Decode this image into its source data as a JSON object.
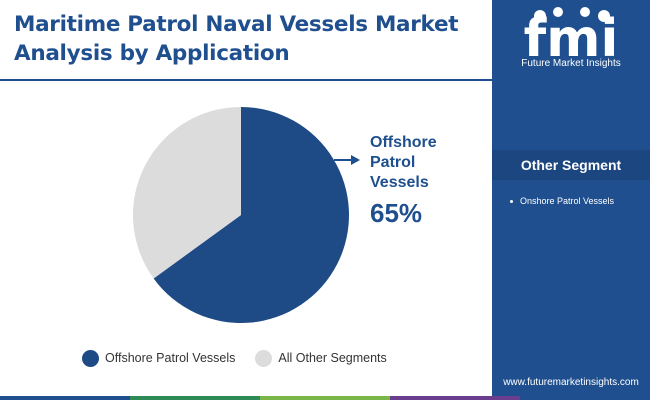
{
  "header": {
    "title": "Maritime Patrol Naval Vessels Market Analysis by Application"
  },
  "brand": {
    "logo_text": "fmi",
    "name": "Future Market Insights",
    "url": "www.futuremarketinsights.com"
  },
  "side_panel": {
    "heading": "Other Segment",
    "items": [
      "Onshore Patrol Vessels"
    ]
  },
  "callout": {
    "label": "Offshore Patrol Vessels",
    "label_lines": [
      "Offshore",
      "Patrol",
      "Vessels"
    ],
    "value": "65%"
  },
  "colors": {
    "navy": "#1f4f8f",
    "slice_primary": "#1e4a85",
    "slice_other": "#dcdcdc",
    "bar": [
      "#1f4f8f",
      "#2e8b57",
      "#7ab648",
      "#6a3d8f",
      "#1f4f8f"
    ]
  },
  "chart_data": {
    "type": "pie",
    "title": "Maritime Patrol Naval Vessels Market Analysis by Application",
    "slices": [
      {
        "label": "Offshore Patrol Vessels",
        "value": 65,
        "color": "#1e4a85"
      },
      {
        "label": "All Other Segments",
        "value": 35,
        "color": "#dcdcdc"
      }
    ],
    "legend_position": "bottom",
    "data_labels": [
      {
        "slice": "Offshore Patrol Vessels",
        "text": "65%"
      }
    ]
  }
}
